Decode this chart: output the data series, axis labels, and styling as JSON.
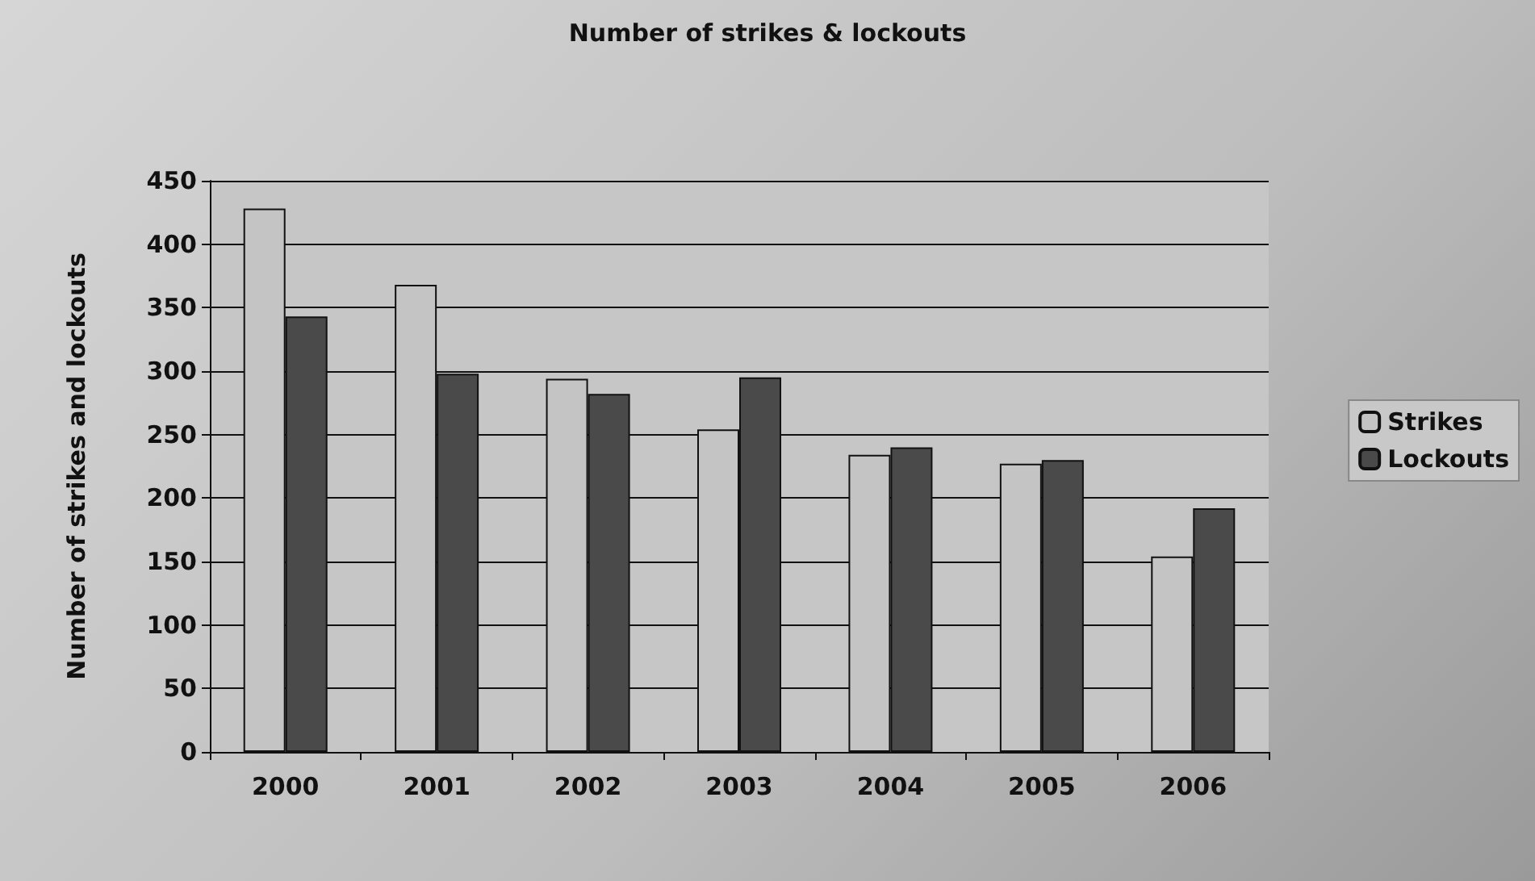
{
  "chart_data": {
    "type": "bar",
    "title": "Number of strikes & lockouts",
    "ylabel": "Number of strikes and lockouts",
    "categories": [
      "2000",
      "2001",
      "2002",
      "2003",
      "2004",
      "2005",
      "2006"
    ],
    "series": [
      {
        "name": "Strikes",
        "color": "#c4c4c4",
        "values": [
          428,
          368,
          294,
          254,
          234,
          227,
          154
        ]
      },
      {
        "name": "Lockouts",
        "color": "#4a4a4a",
        "values": [
          343,
          298,
          282,
          295,
          240,
          230,
          192
        ]
      }
    ],
    "ylim": [
      0,
      450
    ],
    "yticks": [
      0,
      50,
      100,
      150,
      200,
      250,
      300,
      350,
      400,
      450
    ],
    "grid": "y",
    "legend": "right"
  }
}
